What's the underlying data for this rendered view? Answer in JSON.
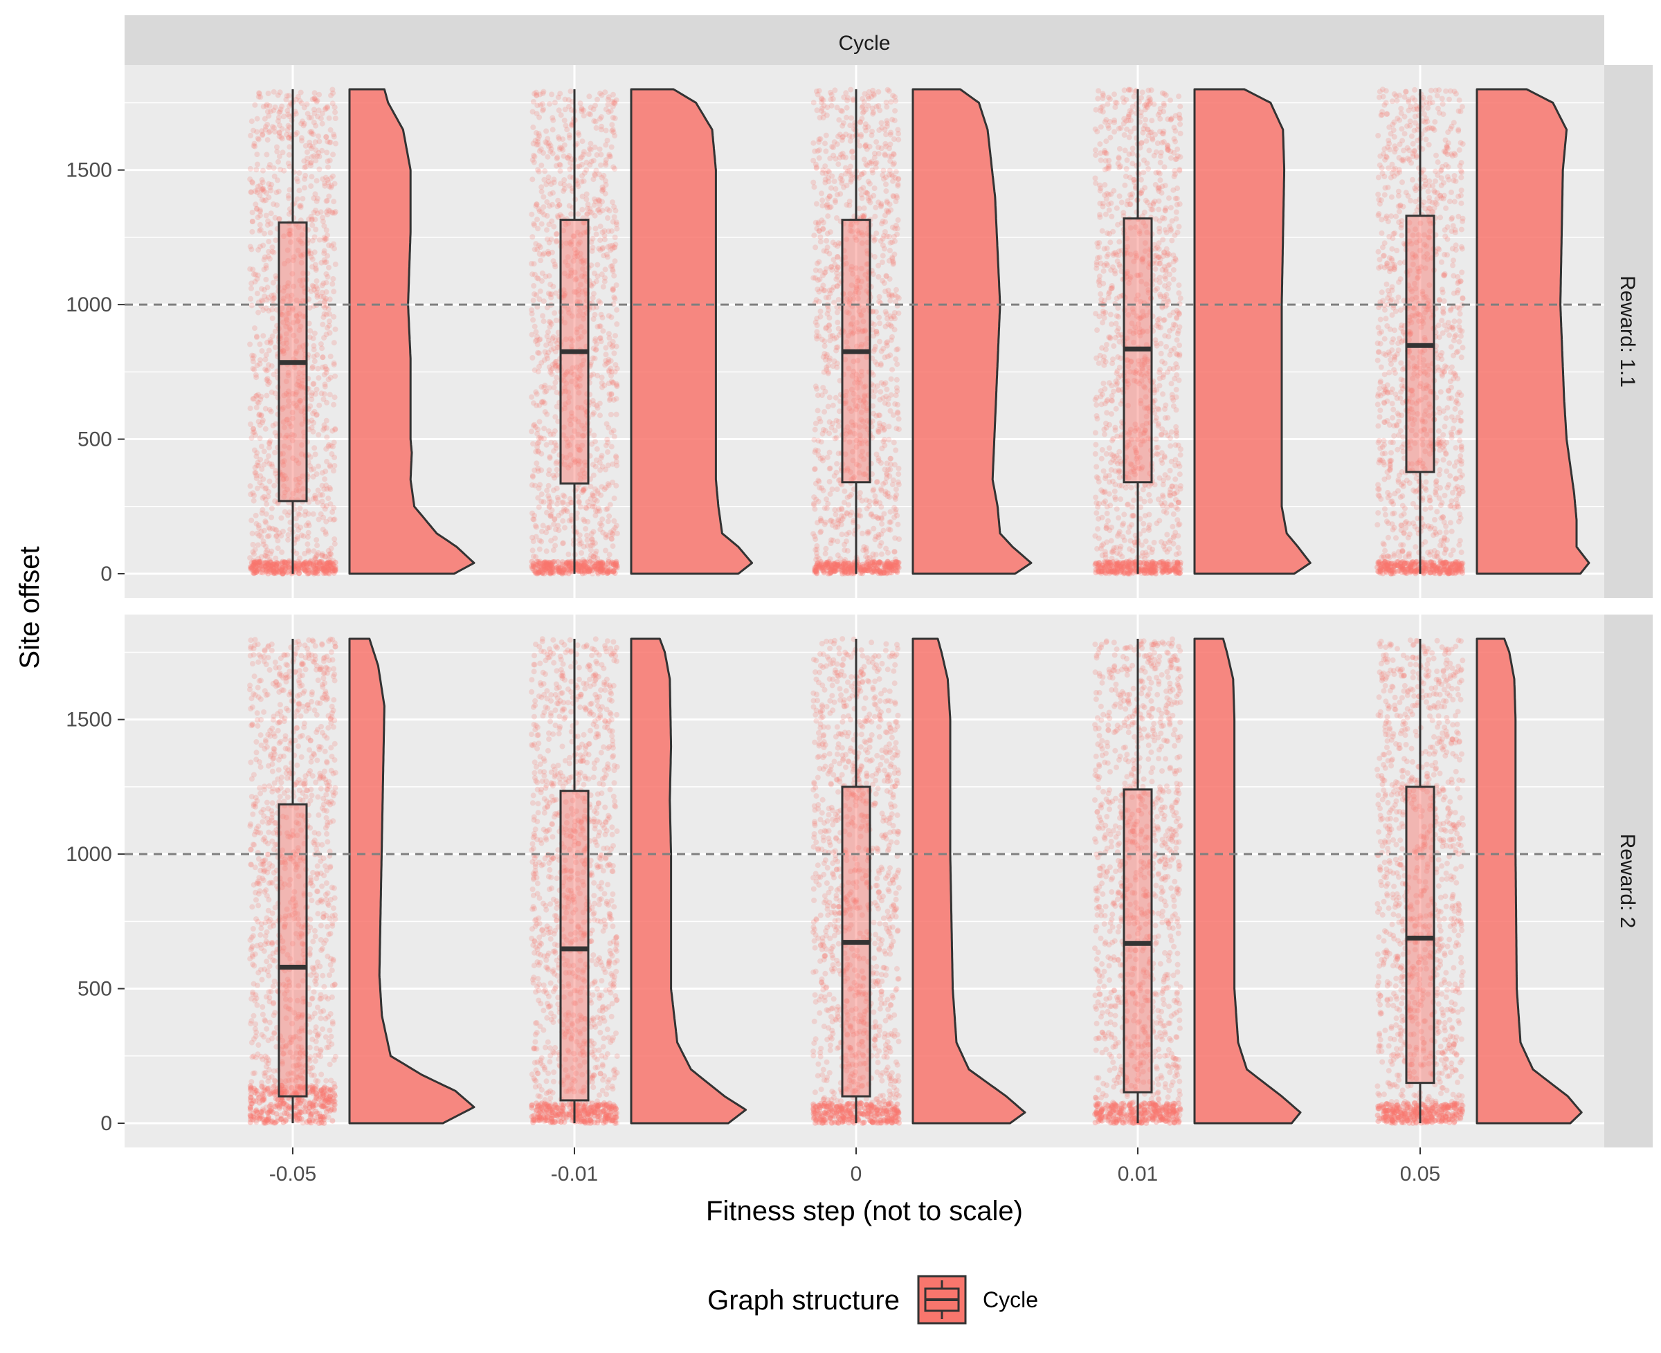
{
  "chart_data": {
    "type": "raincloud",
    "facet_column_label": "Cycle",
    "facet_rows": [
      "Reward: 1.1",
      "Reward: 2"
    ],
    "xlabel": "Fitness step (not to scale)",
    "ylabel": "Site offset",
    "categories": [
      "-0.05",
      "-0.01",
      "0",
      "0.01",
      "0.05"
    ],
    "ylim": [
      -90,
      1890
    ],
    "yticks": [
      0,
      500,
      1000,
      1500
    ],
    "y_range_of_data": [
      0,
      1800
    ],
    "reference_line": {
      "y": 1000,
      "style": "dashed"
    },
    "grid": true,
    "fill_color": "#F8766D",
    "legend": {
      "title": "Graph structure",
      "entries": [
        "Cycle"
      ],
      "position": "bottom"
    },
    "panels": [
      {
        "label": "Reward: 1.1",
        "groups": [
          {
            "x": "-0.05",
            "q1": 270,
            "median": 785,
            "q3": 1305,
            "density": [
              [
                0,
                0.84
              ],
              [
                40,
                1.0
              ],
              [
                100,
                0.86
              ],
              [
                150,
                0.7
              ],
              [
                250,
                0.52
              ],
              [
                350,
                0.49
              ],
              [
                450,
                0.5
              ],
              [
                500,
                0.49
              ],
              [
                800,
                0.49
              ],
              [
                1000,
                0.47
              ],
              [
                1270,
                0.49
              ],
              [
                1500,
                0.49
              ],
              [
                1650,
                0.43
              ],
              [
                1750,
                0.31
              ],
              [
                1800,
                0.28
              ]
            ]
          },
          {
            "x": "-0.01",
            "q1": 335,
            "median": 825,
            "q3": 1315,
            "density": [
              [
                0,
                0.86
              ],
              [
                40,
                0.97
              ],
              [
                100,
                0.86
              ],
              [
                150,
                0.73
              ],
              [
                250,
                0.7
              ],
              [
                350,
                0.68
              ],
              [
                1000,
                0.68
              ],
              [
                1500,
                0.68
              ],
              [
                1650,
                0.65
              ],
              [
                1750,
                0.52
              ],
              [
                1800,
                0.34
              ]
            ]
          },
          {
            "x": "0",
            "q1": 340,
            "median": 825,
            "q3": 1315,
            "density": [
              [
                0,
                0.82
              ],
              [
                40,
                0.95
              ],
              [
                100,
                0.8
              ],
              [
                150,
                0.7
              ],
              [
                250,
                0.68
              ],
              [
                350,
                0.64
              ],
              [
                1000,
                0.7
              ],
              [
                1400,
                0.66
              ],
              [
                1650,
                0.6
              ],
              [
                1750,
                0.53
              ],
              [
                1800,
                0.38
              ]
            ]
          },
          {
            "x": "0.01",
            "q1": 340,
            "median": 835,
            "q3": 1320,
            "density": [
              [
                0,
                0.8
              ],
              [
                40,
                0.93
              ],
              [
                100,
                0.83
              ],
              [
                150,
                0.74
              ],
              [
                250,
                0.7
              ],
              [
                350,
                0.7
              ],
              [
                1000,
                0.7
              ],
              [
                1500,
                0.72
              ],
              [
                1650,
                0.71
              ],
              [
                1750,
                0.61
              ],
              [
                1800,
                0.4
              ]
            ]
          },
          {
            "x": "0.05",
            "q1": 378,
            "median": 848,
            "q3": 1330,
            "density": [
              [
                0,
                0.83
              ],
              [
                40,
                0.9
              ],
              [
                100,
                0.8
              ],
              [
                200,
                0.8
              ],
              [
                300,
                0.78
              ],
              [
                500,
                0.72
              ],
              [
                650,
                0.7
              ],
              [
                1000,
                0.67
              ],
              [
                1500,
                0.69
              ],
              [
                1650,
                0.72
              ],
              [
                1750,
                0.61
              ],
              [
                1800,
                0.4
              ]
            ]
          }
        ]
      },
      {
        "label": "Reward: 2",
        "groups": [
          {
            "x": "-0.05",
            "q1": 100,
            "median": 580,
            "q3": 1185,
            "density": [
              [
                0,
                0.75
              ],
              [
                60,
                1.0
              ],
              [
                120,
                0.85
              ],
              [
                180,
                0.58
              ],
              [
                250,
                0.33
              ],
              [
                400,
                0.26
              ],
              [
                550,
                0.24
              ],
              [
                800,
                0.25
              ],
              [
                1300,
                0.27
              ],
              [
                1550,
                0.28
              ],
              [
                1700,
                0.23
              ],
              [
                1800,
                0.16
              ]
            ]
          },
          {
            "x": "-0.01",
            "q1": 85,
            "median": 648,
            "q3": 1235,
            "density": [
              [
                0,
                0.78
              ],
              [
                50,
                0.92
              ],
              [
                100,
                0.75
              ],
              [
                200,
                0.48
              ],
              [
                300,
                0.37
              ],
              [
                500,
                0.32
              ],
              [
                1000,
                0.32
              ],
              [
                1200,
                0.31
              ],
              [
                1400,
                0.32
              ],
              [
                1650,
                0.31
              ],
              [
                1750,
                0.27
              ],
              [
                1800,
                0.23
              ]
            ]
          },
          {
            "x": "0",
            "q1": 100,
            "median": 672,
            "q3": 1250,
            "density": [
              [
                0,
                0.78
              ],
              [
                40,
                0.9
              ],
              [
                100,
                0.75
              ],
              [
                200,
                0.45
              ],
              [
                300,
                0.35
              ],
              [
                500,
                0.32
              ],
              [
                1000,
                0.3
              ],
              [
                1500,
                0.3
              ],
              [
                1650,
                0.28
              ],
              [
                1750,
                0.23
              ],
              [
                1800,
                0.2
              ]
            ]
          },
          {
            "x": "0.01",
            "q1": 115,
            "median": 668,
            "q3": 1240,
            "density": [
              [
                0,
                0.78
              ],
              [
                40,
                0.85
              ],
              [
                100,
                0.7
              ],
              [
                200,
                0.42
              ],
              [
                300,
                0.35
              ],
              [
                500,
                0.32
              ],
              [
                1000,
                0.32
              ],
              [
                1500,
                0.32
              ],
              [
                1650,
                0.31
              ],
              [
                1750,
                0.26
              ],
              [
                1800,
                0.23
              ]
            ]
          },
          {
            "x": "0.05",
            "q1": 150,
            "median": 688,
            "q3": 1250,
            "density": [
              [
                0,
                0.75
              ],
              [
                40,
                0.84
              ],
              [
                100,
                0.73
              ],
              [
                200,
                0.45
              ],
              [
                300,
                0.35
              ],
              [
                500,
                0.32
              ],
              [
                1000,
                0.31
              ],
              [
                1500,
                0.31
              ],
              [
                1650,
                0.3
              ],
              [
                1750,
                0.26
              ],
              [
                1800,
                0.22
              ]
            ]
          }
        ]
      }
    ]
  }
}
